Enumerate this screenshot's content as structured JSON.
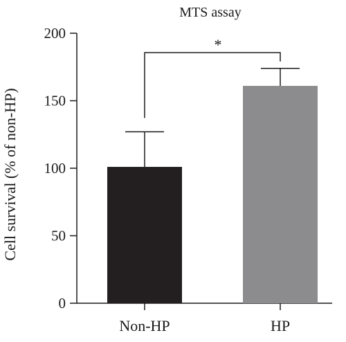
{
  "chart_data": {
    "type": "bar",
    "title": "MTS assay",
    "xlabel": "",
    "ylabel": "Cell survival (% of non-HP)",
    "categories": [
      "Non-HP",
      "HP"
    ],
    "values": [
      101,
      161
    ],
    "error_upper": [
      127,
      174
    ],
    "bar_colors": [
      "#231f20",
      "#8c8c8e"
    ],
    "ylim": [
      0,
      200
    ],
    "yticks": [
      "0",
      "50",
      "100",
      "150",
      "200"
    ],
    "significance": {
      "from": "Non-HP",
      "to": "HP",
      "label": "*"
    },
    "grid": false,
    "legend": "none"
  }
}
